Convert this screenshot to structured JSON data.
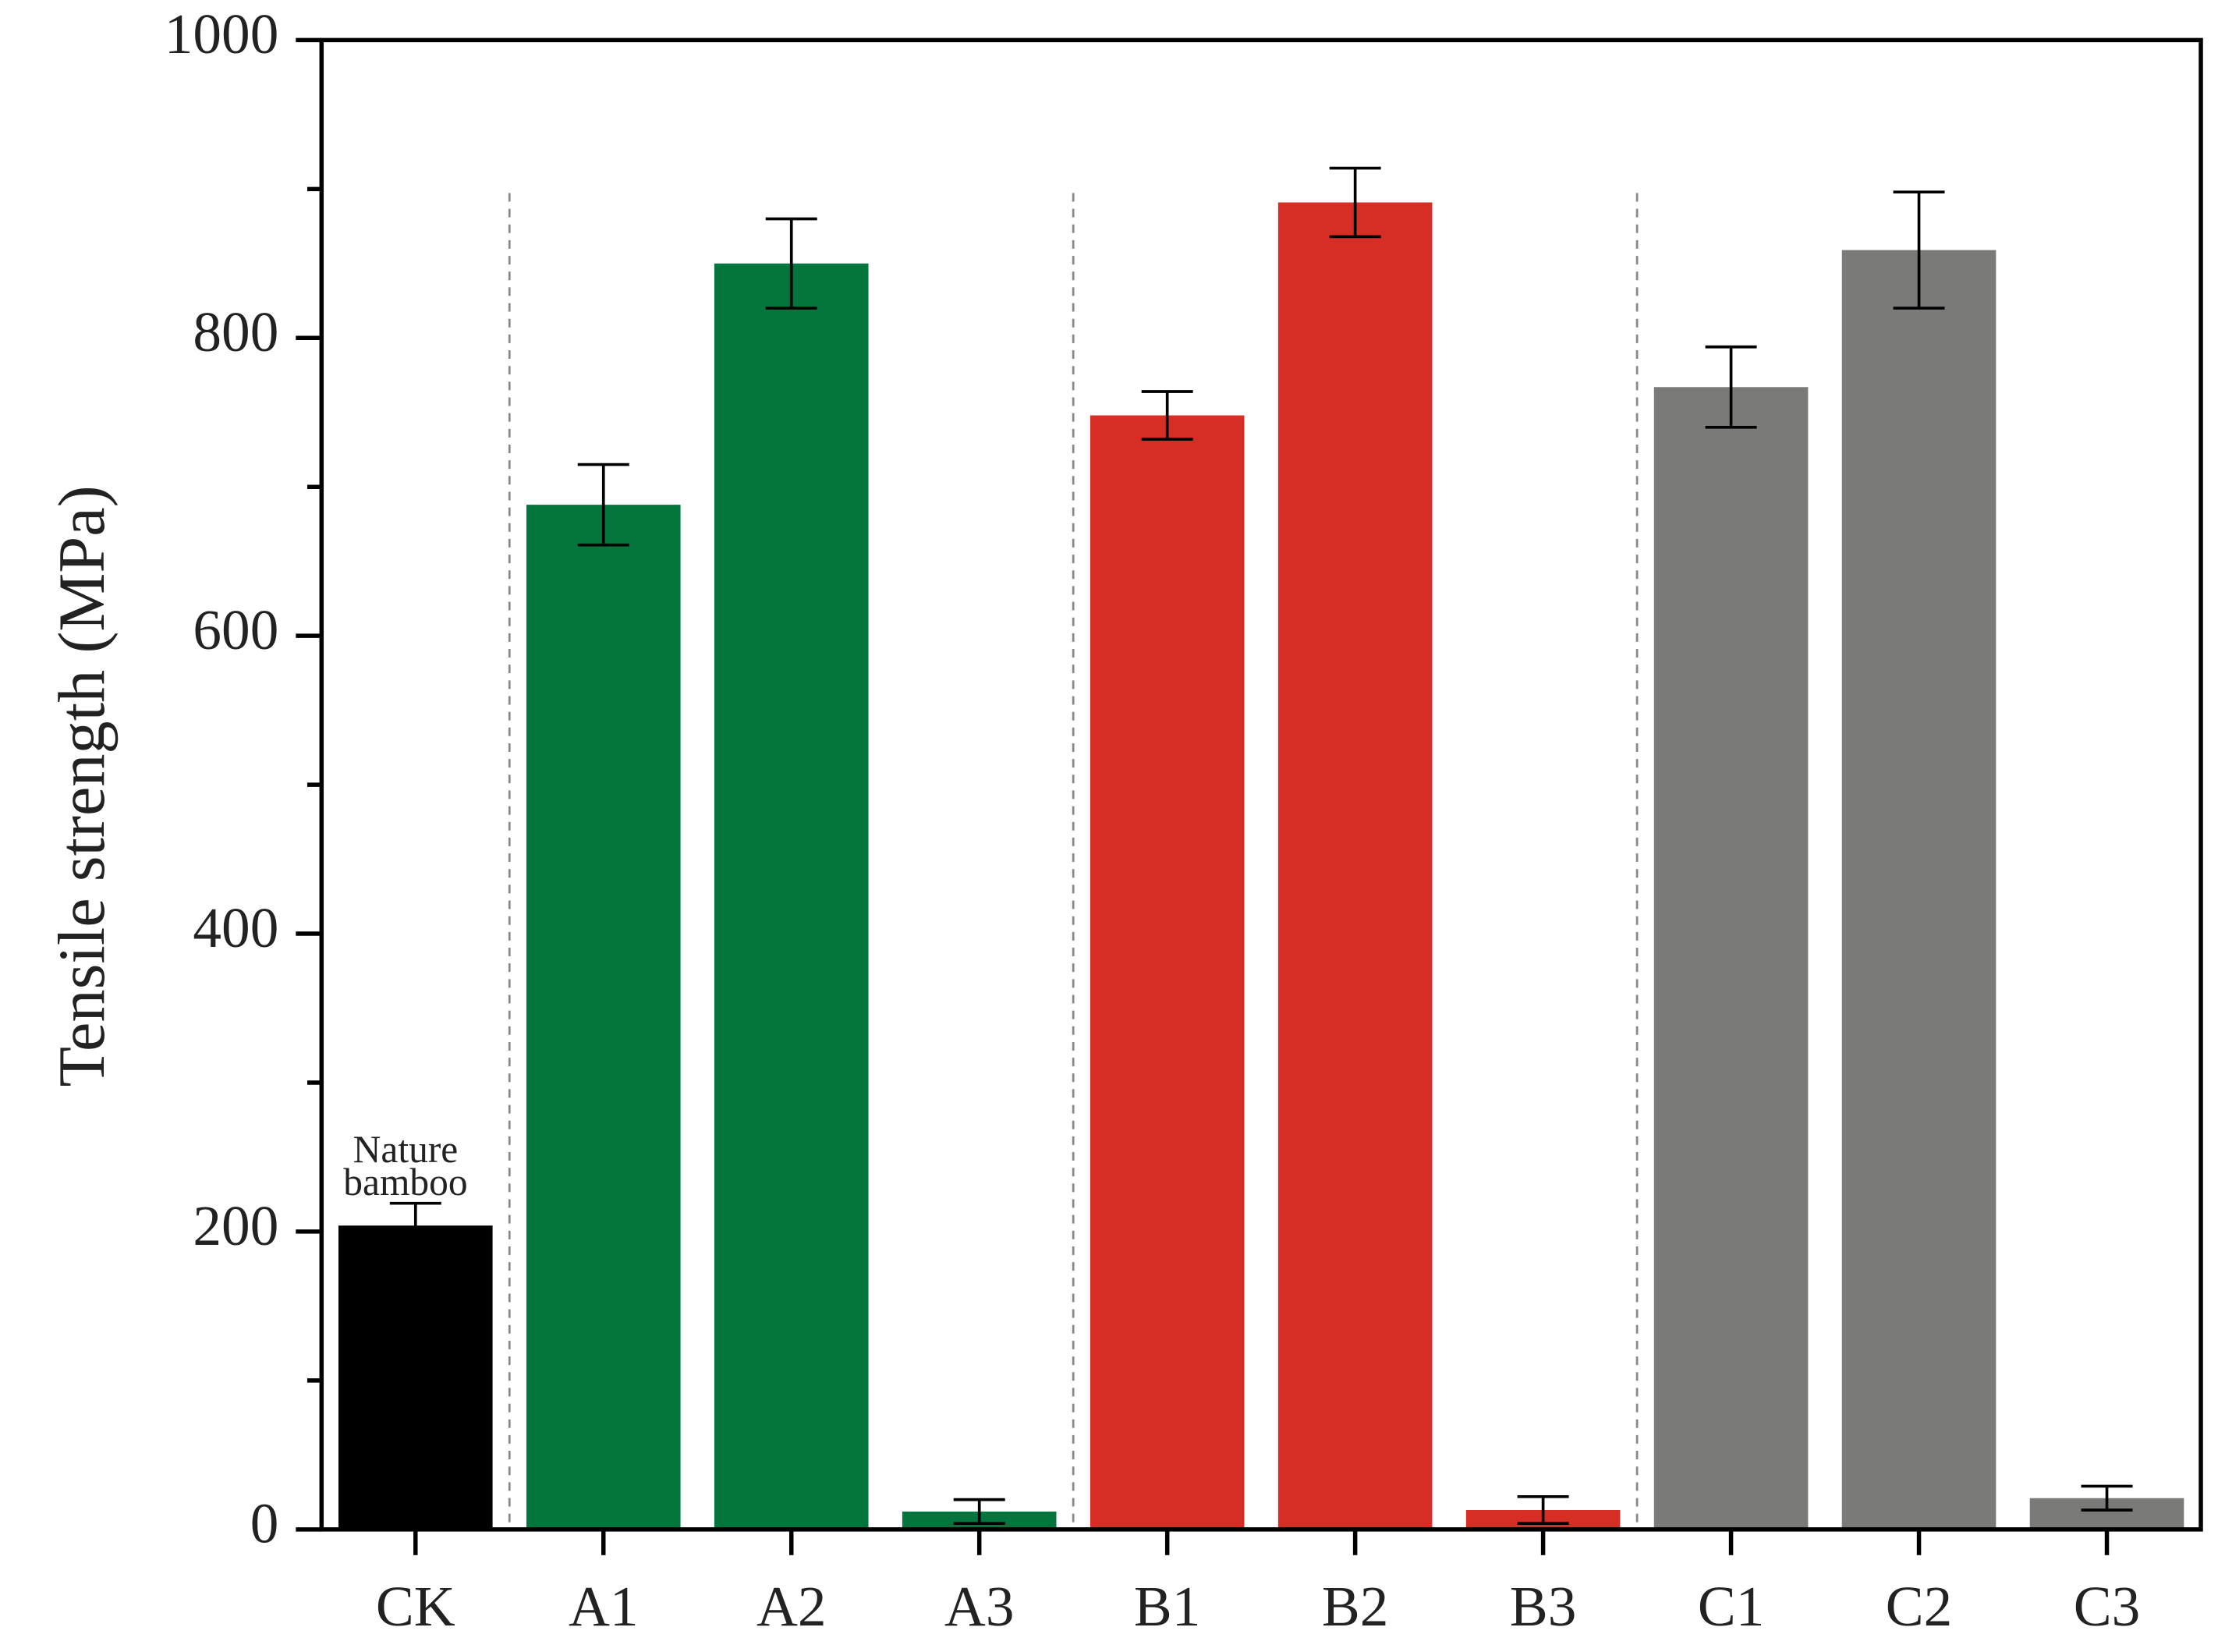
{
  "chart_data": {
    "type": "bar",
    "y_label": "Tensile strength (MPa)",
    "categories": [
      "CK",
      "A1",
      "A2",
      "A3",
      "B1",
      "B2",
      "B3",
      "C1",
      "C2",
      "C3"
    ],
    "values": [
      204,
      688,
      850,
      12,
      748,
      891,
      13,
      767,
      859,
      21
    ],
    "errors": [
      15,
      27,
      30,
      8,
      16,
      23,
      9,
      27,
      39,
      8
    ],
    "colors": [
      "#000000",
      "#04753c",
      "#04753c",
      "#04753c",
      "#d62d24",
      "#d62d24",
      "#d62d24",
      "#7a7a78",
      "#7a7a78",
      "#7a7a78"
    ],
    "annotation": [
      "Nature",
      "bamboo"
    ],
    "ylim": [
      0,
      1000
    ],
    "yticks": [
      0,
      200,
      400,
      600,
      800,
      1000
    ],
    "minor_yticks": [
      100,
      300,
      500,
      700,
      900
    ]
  }
}
